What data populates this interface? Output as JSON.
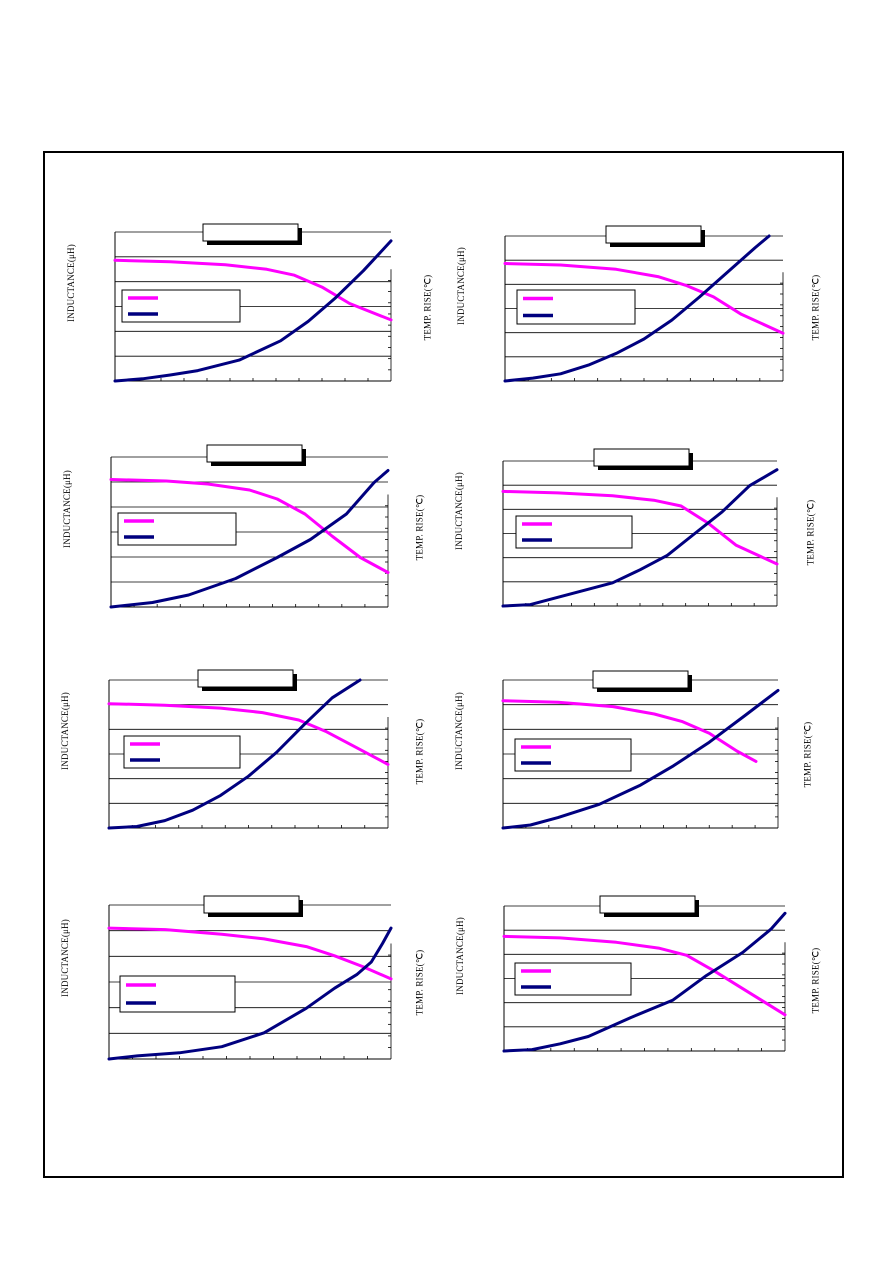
{
  "labels": {
    "y_left": "INDUCTANCE(μH)",
    "y_right": "TEMP. RISE(℃)"
  },
  "colors": {
    "inductance": "#ff00ff",
    "temp_rise": "#00007f",
    "grid": "#000000"
  },
  "chart_data": [
    {
      "type": "line",
      "title": "",
      "xlabel": "",
      "ylabel": "INDUCTANCE(μH)",
      "ylabel_right": "TEMP. RISE(℃)",
      "xlim": [
        0,
        1
      ],
      "ylim": [
        0,
        1
      ],
      "grid": true,
      "legend": "center-left",
      "series": [
        {
          "values": [
            [
              0,
              0.81
            ],
            [
              0.2,
              0.8
            ],
            [
              0.4,
              0.78
            ],
            [
              0.55,
              0.75
            ],
            [
              0.65,
              0.71
            ],
            [
              0.75,
              0.63
            ],
            [
              0.85,
              0.52
            ],
            [
              1.0,
              0.41
            ]
          ]
        },
        {
          "values": [
            [
              0,
              0.0
            ],
            [
              0.1,
              0.015
            ],
            [
              0.2,
              0.04
            ],
            [
              0.3,
              0.07
            ],
            [
              0.45,
              0.14
            ],
            [
              0.6,
              0.27
            ],
            [
              0.7,
              0.4
            ],
            [
              0.8,
              0.56
            ],
            [
              0.9,
              0.74
            ],
            [
              0.97,
              0.88
            ],
            [
              1.0,
              0.94
            ]
          ]
        }
      ]
    },
    {
      "type": "line",
      "title": "",
      "xlabel": "",
      "ylabel": "INDUCTANCE(μH)",
      "ylabel_right": "TEMP. RISE(℃)",
      "xlim": [
        0,
        1
      ],
      "ylim": [
        0,
        1
      ],
      "grid": true,
      "legend": "center-left",
      "series": [
        {
          "values": [
            [
              0,
              0.81
            ],
            [
              0.2,
              0.8
            ],
            [
              0.4,
              0.77
            ],
            [
              0.55,
              0.72
            ],
            [
              0.65,
              0.66
            ],
            [
              0.75,
              0.58
            ],
            [
              0.85,
              0.46
            ],
            [
              1.0,
              0.33
            ]
          ]
        },
        {
          "values": [
            [
              0,
              0.0
            ],
            [
              0.1,
              0.02
            ],
            [
              0.2,
              0.05
            ],
            [
              0.3,
              0.11
            ],
            [
              0.4,
              0.19
            ],
            [
              0.5,
              0.29
            ],
            [
              0.6,
              0.42
            ],
            [
              0.7,
              0.58
            ],
            [
              0.8,
              0.75
            ],
            [
              0.9,
              0.92
            ],
            [
              0.95,
              1.0
            ]
          ]
        }
      ]
    },
    {
      "type": "line",
      "title": "",
      "xlabel": "",
      "ylabel": "INDUCTANCE(μH)",
      "ylabel_right": "TEMP. RISE(℃)",
      "xlim": [
        0,
        1
      ],
      "ylim": [
        0,
        1
      ],
      "grid": true,
      "legend": "center-left",
      "series": [
        {
          "values": [
            [
              0,
              0.85
            ],
            [
              0.2,
              0.84
            ],
            [
              0.35,
              0.82
            ],
            [
              0.5,
              0.78
            ],
            [
              0.6,
              0.72
            ],
            [
              0.7,
              0.62
            ],
            [
              0.8,
              0.47
            ],
            [
              0.9,
              0.33
            ],
            [
              1.0,
              0.23
            ]
          ]
        },
        {
          "values": [
            [
              0,
              0.0
            ],
            [
              0.15,
              0.03
            ],
            [
              0.28,
              0.08
            ],
            [
              0.45,
              0.19
            ],
            [
              0.6,
              0.33
            ],
            [
              0.72,
              0.45
            ],
            [
              0.85,
              0.62
            ],
            [
              0.95,
              0.83
            ],
            [
              1.0,
              0.91
            ]
          ]
        }
      ]
    },
    {
      "type": "line",
      "title": "",
      "xlabel": "",
      "ylabel": "INDUCTANCE(μH)",
      "ylabel_right": "TEMP. RISE(℃)",
      "xlim": [
        0,
        1
      ],
      "ylim": [
        0,
        1
      ],
      "grid": true,
      "legend": "center-left",
      "series": [
        {
          "values": [
            [
              0,
              0.79
            ],
            [
              0.2,
              0.78
            ],
            [
              0.4,
              0.76
            ],
            [
              0.55,
              0.73
            ],
            [
              0.65,
              0.69
            ],
            [
              0.75,
              0.57
            ],
            [
              0.85,
              0.42
            ],
            [
              1.0,
              0.29
            ]
          ]
        },
        {
          "values": [
            [
              0,
              0.0
            ],
            [
              0.1,
              0.01
            ],
            [
              0.2,
              0.06
            ],
            [
              0.3,
              0.11
            ],
            [
              0.4,
              0.16
            ],
            [
              0.5,
              0.25
            ],
            [
              0.6,
              0.35
            ],
            [
              0.7,
              0.5
            ],
            [
              0.8,
              0.65
            ],
            [
              0.9,
              0.83
            ],
            [
              1.0,
              0.94
            ]
          ]
        }
      ]
    },
    {
      "type": "line",
      "title": "",
      "xlabel": "",
      "ylabel": "INDUCTANCE(μH)",
      "ylabel_right": "TEMP. RISE(℃)",
      "xlim": [
        0,
        1
      ],
      "ylim": [
        0,
        1
      ],
      "grid": true,
      "legend": "center-left",
      "series": [
        {
          "values": [
            [
              0,
              0.84
            ],
            [
              0.2,
              0.83
            ],
            [
              0.4,
              0.81
            ],
            [
              0.55,
              0.78
            ],
            [
              0.68,
              0.73
            ],
            [
              0.78,
              0.65
            ],
            [
              0.88,
              0.55
            ],
            [
              1.0,
              0.43
            ]
          ]
        },
        {
          "values": [
            [
              0,
              0.0
            ],
            [
              0.1,
              0.01
            ],
            [
              0.2,
              0.05
            ],
            [
              0.3,
              0.12
            ],
            [
              0.4,
              0.22
            ],
            [
              0.5,
              0.35
            ],
            [
              0.6,
              0.51
            ],
            [
              0.7,
              0.7
            ],
            [
              0.8,
              0.88
            ],
            [
              0.9,
              1.03
            ]
          ]
        }
      ]
    },
    {
      "type": "line",
      "title": "",
      "xlabel": "",
      "ylabel": "INDUCTANCE(μH)",
      "ylabel_right": "TEMP. RISE(℃)",
      "xlim": [
        0,
        1
      ],
      "ylim": [
        0,
        1
      ],
      "grid": true,
      "legend": "center-left",
      "series": [
        {
          "values": [
            [
              0,
              0.86
            ],
            [
              0.2,
              0.85
            ],
            [
              0.4,
              0.82
            ],
            [
              0.55,
              0.77
            ],
            [
              0.65,
              0.72
            ],
            [
              0.75,
              0.64
            ],
            [
              0.85,
              0.52
            ],
            [
              0.92,
              0.45
            ]
          ]
        },
        {
          "values": [
            [
              0,
              0.0
            ],
            [
              0.1,
              0.02
            ],
            [
              0.2,
              0.07
            ],
            [
              0.35,
              0.16
            ],
            [
              0.5,
              0.29
            ],
            [
              0.62,
              0.42
            ],
            [
              0.75,
              0.58
            ],
            [
              0.88,
              0.76
            ],
            [
              1.0,
              0.93
            ]
          ]
        }
      ]
    },
    {
      "type": "line",
      "title": "",
      "xlabel": "",
      "ylabel": "INDUCTANCE(μH)",
      "ylabel_right": "TEMP. RISE(℃)",
      "xlim": [
        0,
        1
      ],
      "ylim": [
        0,
        1
      ],
      "grid": true,
      "legend": "center-left",
      "series": [
        {
          "values": [
            [
              0,
              0.85
            ],
            [
              0.2,
              0.84
            ],
            [
              0.4,
              0.81
            ],
            [
              0.55,
              0.78
            ],
            [
              0.7,
              0.73
            ],
            [
              0.8,
              0.67
            ],
            [
              0.9,
              0.6
            ],
            [
              1.0,
              0.52
            ]
          ]
        },
        {
          "values": [
            [
              0,
              0.0
            ],
            [
              0.1,
              0.02
            ],
            [
              0.25,
              0.04
            ],
            [
              0.4,
              0.08
            ],
            [
              0.55,
              0.17
            ],
            [
              0.7,
              0.33
            ],
            [
              0.8,
              0.46
            ],
            [
              0.88,
              0.55
            ],
            [
              0.93,
              0.63
            ],
            [
              0.97,
              0.75
            ],
            [
              1.0,
              0.85
            ]
          ]
        }
      ]
    },
    {
      "type": "line",
      "title": "",
      "xlabel": "",
      "ylabel": "INDUCTANCE(μH)",
      "ylabel_right": "TEMP. RISE(℃)",
      "xlim": [
        0,
        1
      ],
      "ylim": [
        0,
        1
      ],
      "grid": true,
      "legend": "center-left",
      "series": [
        {
          "values": [
            [
              0,
              0.79
            ],
            [
              0.2,
              0.78
            ],
            [
              0.4,
              0.75
            ],
            [
              0.55,
              0.71
            ],
            [
              0.65,
              0.66
            ],
            [
              0.75,
              0.55
            ],
            [
              0.85,
              0.43
            ],
            [
              1.0,
              0.25
            ]
          ]
        },
        {
          "values": [
            [
              0,
              0.0
            ],
            [
              0.1,
              0.01
            ],
            [
              0.2,
              0.05
            ],
            [
              0.3,
              0.1
            ],
            [
              0.45,
              0.23
            ],
            [
              0.6,
              0.35
            ],
            [
              0.72,
              0.52
            ],
            [
              0.85,
              0.68
            ],
            [
              0.95,
              0.84
            ],
            [
              1.0,
              0.95
            ]
          ]
        }
      ]
    }
  ]
}
